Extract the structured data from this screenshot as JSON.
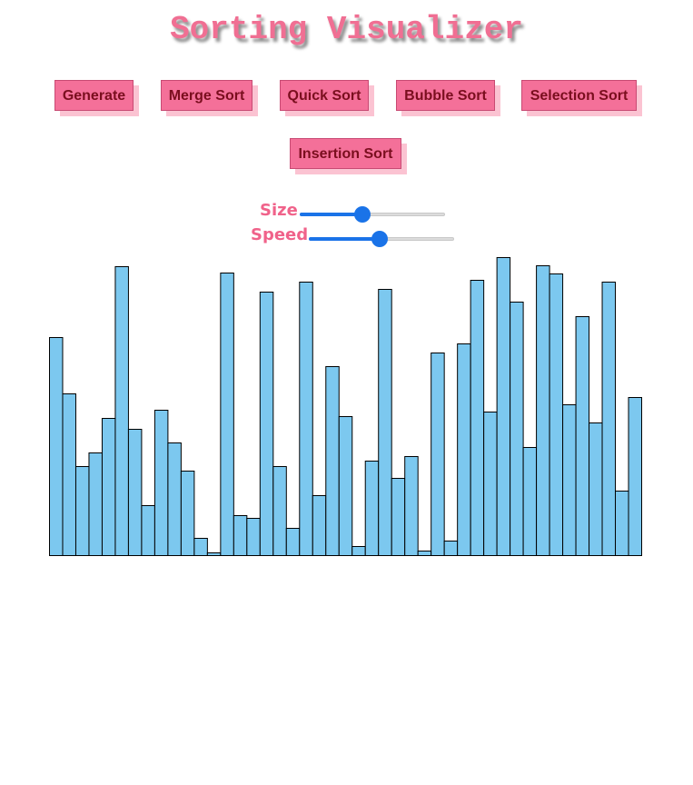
{
  "title": "Sorting Visualizer",
  "buttons": {
    "generate": "Generate",
    "merge_sort": "Merge Sort",
    "quick_sort": "Quick Sort",
    "bubble_sort": "Bubble Sort",
    "selection_sort": "Selection Sort",
    "insertion_sort": "Insertion Sort"
  },
  "controls": {
    "size_label": "Size",
    "size_value_fraction": 0.43,
    "speed_label": "Speed",
    "speed_value_fraction": 0.49
  },
  "colors": {
    "bar_fill": "#7cc8ef",
    "bar_stroke": "#000000",
    "button_fill": "#f47099",
    "button_text": "#7a0e1e",
    "title": "#f06f93",
    "slider_accent": "#1a73e8"
  },
  "chart_data": {
    "type": "bar",
    "values": [
      240,
      178,
      98,
      113,
      151,
      318,
      139,
      55,
      160,
      124,
      93,
      19,
      3,
      311,
      44,
      41,
      290,
      98,
      30,
      301,
      66,
      208,
      153,
      10,
      104,
      293,
      85,
      109,
      5,
      223,
      16,
      233,
      303,
      158,
      328,
      279,
      119,
      319,
      310,
      166,
      263,
      146,
      301,
      71,
      174
    ],
    "ylim": [
      0,
      328
    ]
  }
}
